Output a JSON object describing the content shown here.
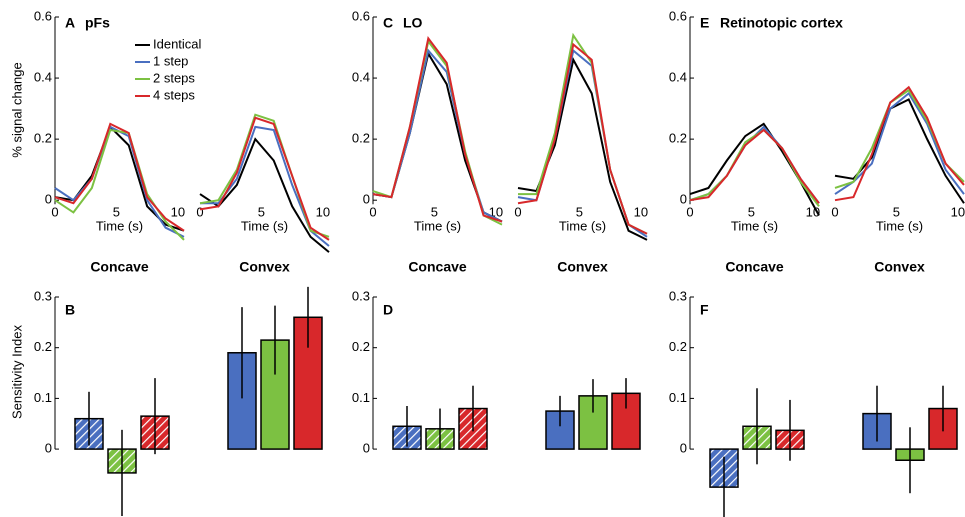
{
  "legend": [
    {
      "name": "Identical",
      "color": "#000000"
    },
    {
      "name": "1 step",
      "color": "#4a6fc0"
    },
    {
      "name": "2 steps",
      "color": "#7cc142"
    },
    {
      "name": "4 steps",
      "color": "#d8282b"
    }
  ],
  "chart_data": [
    {
      "type": "line",
      "label": "A",
      "title": "pFs",
      "ylabel": "% signal change",
      "xlabel": "Time (s)",
      "legend": true,
      "ylim": [
        -0.15,
        0.6
      ],
      "yticks": [
        0,
        0.2,
        0.4,
        0.6
      ],
      "xlim": [
        0,
        10.5
      ],
      "xticks": [
        0,
        5,
        10
      ],
      "x": [
        0,
        1.5,
        3,
        4.5,
        6,
        7.5,
        9,
        10.5
      ],
      "subplots": [
        {
          "title": "Concave",
          "series": [
            {
              "values": [
                0.01,
                0,
                0.08,
                0.24,
                0.18,
                -0.02,
                -0.08,
                -0.1
              ]
            },
            {
              "values": [
                0.04,
                0,
                0.07,
                0.24,
                0.21,
                0,
                -0.09,
                -0.12
              ]
            },
            {
              "values": [
                0,
                -0.04,
                0.04,
                0.23,
                0.22,
                0.02,
                -0.07,
                -0.13
              ]
            },
            {
              "values": [
                0.01,
                -0.01,
                0.07,
                0.25,
                0.22,
                0.01,
                -0.06,
                -0.1
              ]
            }
          ]
        },
        {
          "title": "Convex",
          "series": [
            {
              "values": [
                0.02,
                -0.02,
                0.05,
                0.2,
                0.13,
                -0.02,
                -0.12,
                -0.17
              ]
            },
            {
              "values": [
                -0.01,
                -0.01,
                0.07,
                0.24,
                0.23,
                0.05,
                -0.1,
                -0.15
              ]
            },
            {
              "values": [
                -0.01,
                0,
                0.1,
                0.28,
                0.26,
                0.08,
                -0.1,
                -0.12
              ]
            },
            {
              "values": [
                -0.03,
                -0.02,
                0.09,
                0.27,
                0.25,
                0.08,
                -0.09,
                -0.13
              ]
            }
          ]
        }
      ]
    },
    {
      "type": "bar",
      "label": "B",
      "ylabel": "Sensitivity Index",
      "ylim": [
        -0.13,
        0.3
      ],
      "yticks": [
        0,
        0.1,
        0.2,
        0.3
      ],
      "groups": [
        {
          "hatched": true,
          "values": [
            0.06,
            -0.047,
            0.065
          ],
          "errors": [
            0.053,
            0.085,
            0.075
          ]
        },
        {
          "hatched": false,
          "values": [
            0.19,
            0.215,
            0.26
          ],
          "errors": [
            0.09,
            0.068,
            0.06
          ]
        }
      ]
    },
    {
      "type": "line",
      "label": "C",
      "title": "LO",
      "xlabel": "Time (s)",
      "ylim": [
        -0.15,
        0.6
      ],
      "yticks": [
        0,
        0.2,
        0.4,
        0.6
      ],
      "xlim": [
        0,
        10.5
      ],
      "xticks": [
        0,
        5,
        10
      ],
      "x": [
        0,
        1.5,
        3,
        4.5,
        6,
        7.5,
        9,
        10.5
      ],
      "subplots": [
        {
          "title": "Concave",
          "series": [
            {
              "values": [
                0.02,
                0.01,
                0.22,
                0.48,
                0.38,
                0.13,
                -0.04,
                -0.07
              ]
            },
            {
              "values": [
                0.02,
                0.01,
                0.22,
                0.49,
                0.42,
                0.15,
                -0.04,
                -0.07
              ]
            },
            {
              "values": [
                0.03,
                0.01,
                0.24,
                0.52,
                0.44,
                0.16,
                -0.05,
                -0.08
              ]
            },
            {
              "values": [
                0.02,
                0.01,
                0.24,
                0.53,
                0.45,
                0.15,
                -0.05,
                -0.07
              ]
            }
          ]
        },
        {
          "title": "Convex",
          "series": [
            {
              "values": [
                0.04,
                0.03,
                0.18,
                0.46,
                0.35,
                0.06,
                -0.1,
                -0.13
              ]
            },
            {
              "values": [
                0.01,
                0,
                0.2,
                0.49,
                0.44,
                0.1,
                -0.08,
                -0.12
              ]
            },
            {
              "values": [
                0.02,
                0.02,
                0.22,
                0.54,
                0.45,
                0.1,
                -0.08,
                -0.11
              ]
            },
            {
              "values": [
                -0.01,
                0,
                0.2,
                0.51,
                0.46,
                0.1,
                -0.08,
                -0.11
              ]
            }
          ]
        }
      ]
    },
    {
      "type": "bar",
      "label": "D",
      "ylim": [
        -0.13,
        0.3
      ],
      "yticks": [
        0,
        0.1,
        0.2,
        0.3
      ],
      "groups": [
        {
          "hatched": true,
          "values": [
            0.045,
            0.04,
            0.08
          ],
          "errors": [
            0.04,
            0.04,
            0.045
          ]
        },
        {
          "hatched": false,
          "values": [
            0.075,
            0.105,
            0.11
          ],
          "errors": [
            0.03,
            0.033,
            0.03
          ]
        }
      ]
    },
    {
      "type": "line",
      "label": "E",
      "title": "Retinotopic cortex",
      "xlabel": "Time (s)",
      "ylim": [
        -0.15,
        0.6
      ],
      "yticks": [
        0,
        0.2,
        0.4,
        0.6
      ],
      "xlim": [
        0,
        10.5
      ],
      "xticks": [
        0,
        5,
        10
      ],
      "x": [
        0,
        1.5,
        3,
        4.5,
        6,
        7.5,
        9,
        10.5
      ],
      "subplots": [
        {
          "title": "Concave",
          "series": [
            {
              "values": [
                0.02,
                0.04,
                0.13,
                0.21,
                0.25,
                0.16,
                0.06,
                -0.05
              ]
            },
            {
              "values": [
                0,
                0.02,
                0.08,
                0.18,
                0.24,
                0.17,
                0.07,
                -0.01
              ]
            },
            {
              "values": [
                0,
                0.02,
                0.08,
                0.19,
                0.23,
                0.17,
                0.06,
                -0.02
              ]
            },
            {
              "values": [
                0,
                0.01,
                0.08,
                0.18,
                0.23,
                0.17,
                0.07,
                -0.01
              ]
            }
          ]
        },
        {
          "title": "Convex",
          "series": [
            {
              "values": [
                0.08,
                0.07,
                0.14,
                0.3,
                0.33,
                0.2,
                0.08,
                -0.01
              ]
            },
            {
              "values": [
                0.02,
                0.06,
                0.12,
                0.3,
                0.35,
                0.25,
                0.1,
                0.02
              ]
            },
            {
              "values": [
                0.04,
                0.06,
                0.17,
                0.32,
                0.36,
                0.26,
                0.12,
                0.06
              ]
            },
            {
              "values": [
                0,
                0.01,
                0.15,
                0.32,
                0.37,
                0.27,
                0.12,
                0.05
              ]
            }
          ]
        }
      ]
    },
    {
      "type": "bar",
      "label": "F",
      "ylim": [
        -0.13,
        0.3
      ],
      "yticks": [
        0,
        0.1,
        0.2,
        0.3
      ],
      "groups": [
        {
          "hatched": true,
          "values": [
            -0.075,
            0.045,
            0.037
          ],
          "errors": [
            0.06,
            0.075,
            0.06
          ]
        },
        {
          "hatched": false,
          "values": [
            0.07,
            -0.022,
            0.08
          ],
          "errors": [
            0.055,
            0.065,
            0.045
          ]
        }
      ]
    }
  ]
}
